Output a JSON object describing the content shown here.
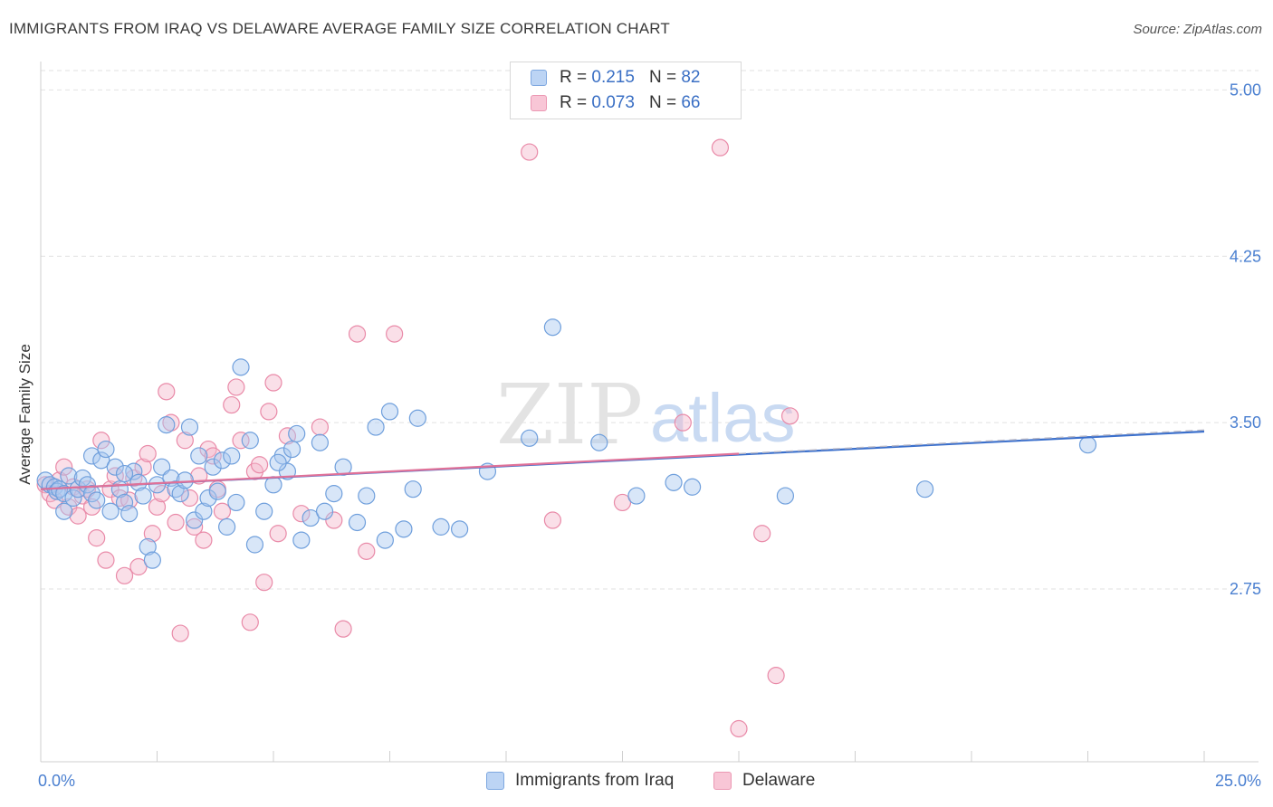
{
  "title": "IMMIGRANTS FROM IRAQ VS DELAWARE AVERAGE FAMILY SIZE CORRELATION CHART",
  "source": "Source: ZipAtlas.com",
  "watermark": {
    "left": "ZIP",
    "right": "atlas"
  },
  "legend": {
    "series1": {
      "r_label": "R =",
      "r_value": "0.215",
      "n_label": "N =",
      "n_value": "82"
    },
    "series2": {
      "r_label": "R =",
      "r_value": "0.073",
      "n_label": "N =",
      "n_value": "66"
    }
  },
  "bottom_legend": {
    "series1": "Immigrants from Iraq",
    "series2": "Delaware"
  },
  "colors": {
    "blue_fill": "#a9c7f0",
    "blue_stroke": "#6f9fdc",
    "blue_line": "#3a6fcc",
    "pink_fill": "#f5b7cb",
    "pink_stroke": "#e98aa8",
    "pink_line": "#e07198",
    "grid": "#e2e2e2",
    "tick_text": "#4a7fd0"
  },
  "chart_data": {
    "type": "scatter",
    "title": "IMMIGRANTS FROM IRAQ VS DELAWARE AVERAGE FAMILY SIZE CORRELATION CHART",
    "xlabel": "",
    "ylabel": "Average Family Size",
    "xlim": [
      0,
      25
    ],
    "ylim": [
      2.02,
      5.12
    ],
    "x_tick_labels": [
      {
        "value": 0,
        "label": "0.0%"
      },
      {
        "value": 25,
        "label": "25.0%"
      }
    ],
    "y_ticks": [
      {
        "value": 2.75,
        "label": "2.75"
      },
      {
        "value": 3.5,
        "label": "3.50"
      },
      {
        "value": 4.25,
        "label": "4.25"
      },
      {
        "value": 5.0,
        "label": "5.00"
      }
    ],
    "grid": true,
    "legend_position": "top-center",
    "series": [
      {
        "name": "Immigrants from Iraq",
        "trend": {
          "x": [
            0,
            25
          ],
          "y": [
            3.2,
            3.46
          ]
        },
        "points": [
          [
            0.1,
            3.24
          ],
          [
            0.2,
            3.22
          ],
          [
            0.3,
            3.21
          ],
          [
            0.35,
            3.19
          ],
          [
            0.4,
            3.2
          ],
          [
            0.5,
            3.18
          ],
          [
            0.5,
            3.1
          ],
          [
            0.6,
            3.26
          ],
          [
            0.7,
            3.16
          ],
          [
            0.8,
            3.2
          ],
          [
            0.9,
            3.25
          ],
          [
            1.0,
            3.22
          ],
          [
            1.1,
            3.18
          ],
          [
            1.2,
            3.15
          ],
          [
            1.1,
            3.35
          ],
          [
            1.3,
            3.33
          ],
          [
            1.4,
            3.38
          ],
          [
            1.5,
            3.1
          ],
          [
            1.6,
            3.3
          ],
          [
            1.7,
            3.2
          ],
          [
            1.8,
            3.14
          ],
          [
            1.9,
            3.09
          ],
          [
            2.0,
            3.28
          ],
          [
            1.8,
            3.27
          ],
          [
            2.1,
            3.23
          ],
          [
            2.2,
            3.17
          ],
          [
            2.3,
            2.94
          ],
          [
            2.4,
            2.88
          ],
          [
            2.5,
            3.22
          ],
          [
            2.6,
            3.3
          ],
          [
            2.7,
            3.49
          ],
          [
            2.8,
            3.25
          ],
          [
            2.9,
            3.2
          ],
          [
            3.0,
            3.18
          ],
          [
            3.1,
            3.24
          ],
          [
            3.2,
            3.48
          ],
          [
            3.3,
            3.06
          ],
          [
            3.4,
            3.35
          ],
          [
            3.5,
            3.1
          ],
          [
            3.6,
            3.16
          ],
          [
            3.7,
            3.3
          ],
          [
            3.8,
            3.19
          ],
          [
            3.9,
            3.33
          ],
          [
            4.0,
            3.03
          ],
          [
            4.1,
            3.35
          ],
          [
            4.2,
            3.14
          ],
          [
            4.3,
            3.75
          ],
          [
            4.5,
            3.42
          ],
          [
            4.6,
            2.95
          ],
          [
            4.8,
            3.1
          ],
          [
            5.0,
            3.22
          ],
          [
            5.2,
            3.35
          ],
          [
            5.3,
            3.28
          ],
          [
            5.1,
            3.32
          ],
          [
            5.4,
            3.38
          ],
          [
            5.5,
            3.45
          ],
          [
            5.6,
            2.97
          ],
          [
            5.8,
            3.07
          ],
          [
            6.0,
            3.41
          ],
          [
            6.1,
            3.1
          ],
          [
            6.3,
            3.18
          ],
          [
            6.5,
            3.3
          ],
          [
            6.8,
            3.05
          ],
          [
            7.0,
            3.17
          ],
          [
            7.2,
            3.48
          ],
          [
            7.4,
            2.97
          ],
          [
            7.5,
            3.55
          ],
          [
            7.8,
            3.02
          ],
          [
            8.0,
            3.2
          ],
          [
            8.1,
            3.52
          ],
          [
            8.6,
            3.03
          ],
          [
            9.0,
            3.02
          ],
          [
            9.6,
            3.28
          ],
          [
            10.5,
            3.43
          ],
          [
            11.0,
            3.93
          ],
          [
            12.0,
            3.41
          ],
          [
            12.8,
            3.17
          ],
          [
            13.6,
            3.23
          ],
          [
            14.0,
            3.21
          ],
          [
            16.0,
            3.17
          ],
          [
            19.0,
            3.2
          ],
          [
            22.5,
            3.4
          ]
        ]
      },
      {
        "name": "Delaware",
        "trend": {
          "x": [
            0,
            15
          ],
          "y": [
            3.2,
            3.36
          ]
        },
        "points": [
          [
            0.1,
            3.22
          ],
          [
            0.2,
            3.18
          ],
          [
            0.3,
            3.15
          ],
          [
            0.4,
            3.24
          ],
          [
            0.5,
            3.3
          ],
          [
            0.6,
            3.12
          ],
          [
            0.7,
            3.21
          ],
          [
            0.8,
            3.08
          ],
          [
            0.9,
            3.17
          ],
          [
            1.0,
            3.2
          ],
          [
            1.1,
            3.12
          ],
          [
            1.2,
            2.98
          ],
          [
            1.3,
            3.42
          ],
          [
            1.4,
            2.88
          ],
          [
            1.5,
            3.2
          ],
          [
            1.6,
            3.26
          ],
          [
            1.7,
            3.16
          ],
          [
            1.8,
            2.81
          ],
          [
            1.9,
            3.15
          ],
          [
            2.0,
            3.25
          ],
          [
            2.1,
            2.85
          ],
          [
            2.2,
            3.3
          ],
          [
            2.3,
            3.36
          ],
          [
            2.4,
            3.0
          ],
          [
            2.5,
            3.12
          ],
          [
            2.6,
            3.18
          ],
          [
            2.7,
            3.64
          ],
          [
            2.8,
            3.5
          ],
          [
            2.9,
            3.05
          ],
          [
            3.0,
            2.55
          ],
          [
            3.1,
            3.42
          ],
          [
            3.2,
            3.16
          ],
          [
            3.3,
            3.03
          ],
          [
            3.4,
            3.26
          ],
          [
            3.5,
            2.97
          ],
          [
            3.6,
            3.38
          ],
          [
            3.7,
            3.35
          ],
          [
            3.8,
            3.2
          ],
          [
            3.9,
            3.1
          ],
          [
            4.1,
            3.58
          ],
          [
            4.2,
            3.66
          ],
          [
            4.3,
            3.42
          ],
          [
            4.5,
            2.6
          ],
          [
            4.6,
            3.28
          ],
          [
            4.7,
            3.31
          ],
          [
            4.8,
            2.78
          ],
          [
            4.9,
            3.55
          ],
          [
            5.0,
            3.68
          ],
          [
            5.1,
            3.0
          ],
          [
            5.3,
            3.44
          ],
          [
            5.6,
            3.09
          ],
          [
            6.0,
            3.48
          ],
          [
            6.3,
            3.06
          ],
          [
            6.5,
            2.57
          ],
          [
            6.8,
            3.9
          ],
          [
            7.0,
            2.92
          ],
          [
            7.6,
            3.9
          ],
          [
            10.5,
            4.72
          ],
          [
            11.0,
            3.06
          ],
          [
            12.5,
            3.14
          ],
          [
            13.8,
            3.5
          ],
          [
            14.6,
            4.74
          ],
          [
            15.0,
            2.12
          ],
          [
            15.5,
            3.0
          ],
          [
            15.8,
            2.36
          ],
          [
            16.1,
            3.53
          ]
        ]
      }
    ]
  }
}
